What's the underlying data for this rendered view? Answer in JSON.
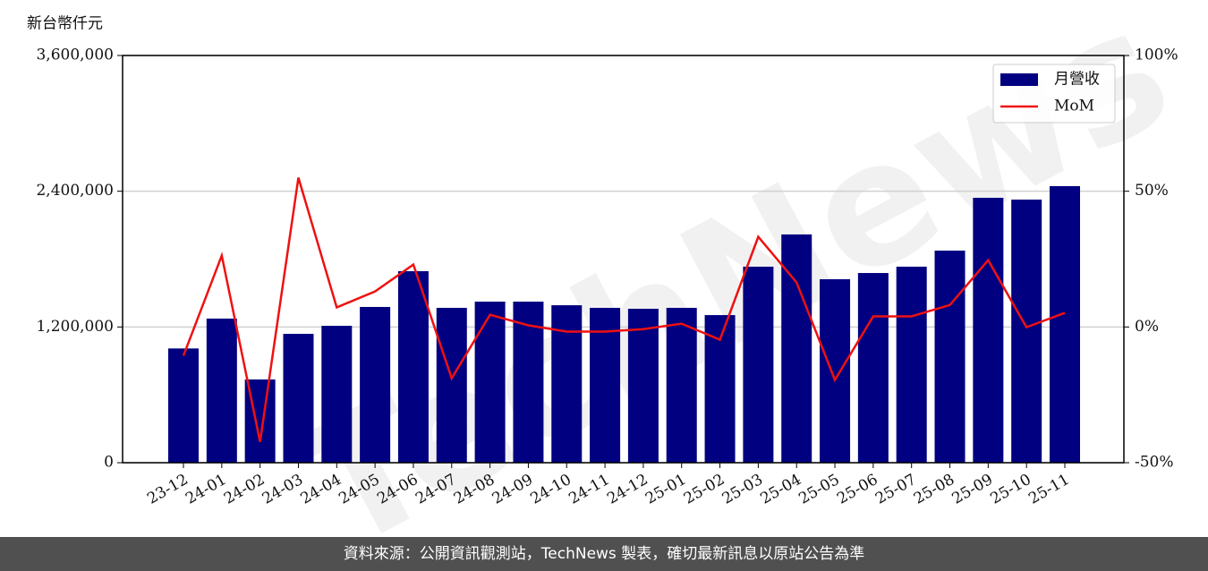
{
  "chart_data": {
    "type": "bar",
    "ylabel": "新台幣仟元",
    "watermark": "TechNews",
    "categories": [
      "23-12",
      "24-01",
      "24-02",
      "24-03",
      "24-04",
      "24-05",
      "24-06",
      "24-07",
      "24-08",
      "24-09",
      "24-10",
      "24-11",
      "24-12",
      "25-01",
      "25-02",
      "25-03",
      "25-04",
      "25-05",
      "25-06",
      "25-07",
      "25-08",
      "25-09",
      "25-10",
      "25-11"
    ],
    "series": [
      {
        "name": "月營收",
        "type": "bar",
        "color": "#000080",
        "values": [
          1010000,
          1274000,
          736000,
          1139000,
          1210000,
          1377000,
          1693000,
          1369000,
          1424000,
          1424000,
          1392000,
          1369000,
          1361000,
          1369000,
          1305000,
          1733000,
          2018000,
          1622000,
          1677000,
          1733000,
          1875000,
          2342000,
          2326000,
          2445000
        ]
      },
      {
        "name": "MoM",
        "type": "line",
        "axis": "y2",
        "color": "#ee1111",
        "values": [
          -10.6,
          26.3,
          -42.3,
          55,
          7.2,
          13.1,
          23,
          -18.9,
          4.5,
          0.6,
          -1.7,
          -1.7,
          -0.8,
          1.2,
          -4.7,
          33.2,
          16.4,
          -19.5,
          3.9,
          3.9,
          8.1,
          24.6,
          -0.1,
          5.2
        ]
      }
    ],
    "ylim": [
      0,
      3600000
    ],
    "yticks": [
      0,
      {
        "value": 1200000,
        "label": "1,200,000"
      },
      {
        "value": 2400000,
        "label": "2,400,000"
      },
      {
        "value": 3600000,
        "label": "3,600,000"
      }
    ],
    "y2lim": [
      -50,
      100
    ],
    "y2ticks": [
      {
        "value": -50,
        "label": "-50%"
      },
      {
        "value": 0,
        "label": "0%"
      },
      {
        "value": 50,
        "label": "50%"
      },
      {
        "value": 100,
        "label": "100%"
      }
    ],
    "grid": true,
    "legend": "upper right"
  },
  "footer": "資料來源：公開資訊觀測站，TechNews 製表，確切最新訊息以原站公告為準"
}
